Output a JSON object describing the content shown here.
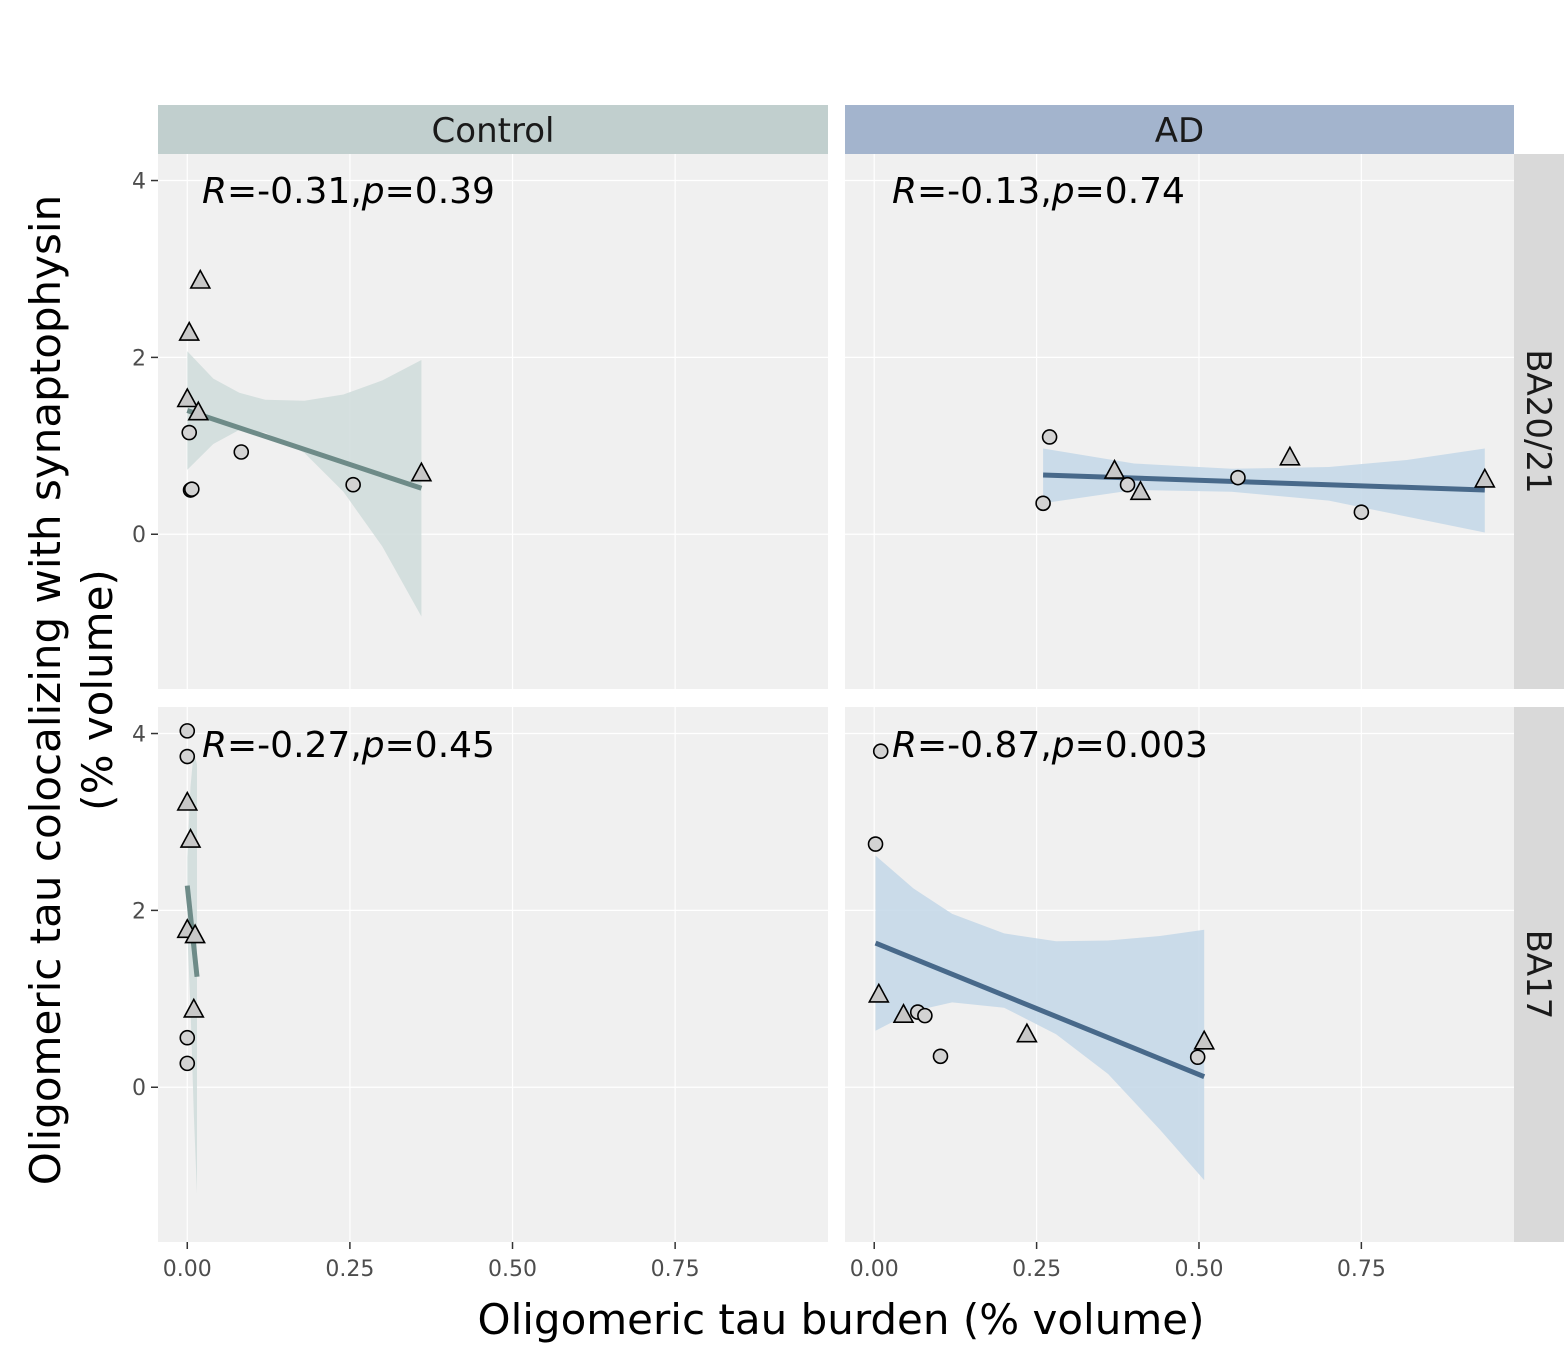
{
  "chart_data": {
    "type": "scatter",
    "xlabel": "Oligomeric tau burden (% volume)",
    "ylabel": "Oligomeric tau colocalizing with synaptophysin\n(% volume)",
    "x_ticks": [
      "0.00",
      "0.25",
      "0.50",
      "0.75"
    ],
    "y_ticks": [
      "0",
      "2",
      "4"
    ],
    "xlim": [
      -0.045,
      0.985
    ],
    "ylim": [
      -1.75,
      4.3
    ],
    "grid": true,
    "legend": "none",
    "columns": [
      {
        "label": "Control",
        "strip_color": "#c1cfce",
        "line_color": "#6e8b88",
        "band_color": "#cfdcda"
      },
      {
        "label": "AD",
        "strip_color": "#a3b4cd",
        "line_color": "#48698a",
        "band_color": "#c3d7e8"
      }
    ],
    "rows": [
      {
        "label": "BA20/21"
      },
      {
        "label": "BA17"
      }
    ],
    "panels": [
      {
        "col": 0,
        "row": 0,
        "annotation": {
          "r": "-0.31",
          "p": "0.39"
        },
        "fit": {
          "x": [
            0.0,
            0.36
          ],
          "y": [
            1.4,
            0.52
          ]
        },
        "band": {
          "x": [
            0.0,
            0.04,
            0.08,
            0.12,
            0.18,
            0.24,
            0.3,
            0.36
          ],
          "upper": [
            2.07,
            1.76,
            1.6,
            1.52,
            1.51,
            1.58,
            1.74,
            1.97
          ],
          "lower": [
            0.73,
            1.02,
            1.18,
            1.15,
            0.92,
            0.48,
            -0.14,
            -0.93
          ]
        },
        "points": [
          {
            "x": 0.02,
            "y": 2.87,
            "shape": "triangle"
          },
          {
            "x": 0.003,
            "y": 2.28,
            "shape": "triangle"
          },
          {
            "x": 0.0,
            "y": 1.53,
            "shape": "triangle"
          },
          {
            "x": 0.017,
            "y": 1.38,
            "shape": "triangle"
          },
          {
            "x": 0.003,
            "y": 1.15,
            "shape": "circle"
          },
          {
            "x": 0.083,
            "y": 0.93,
            "shape": "circle"
          },
          {
            "x": 0.255,
            "y": 0.56,
            "shape": "circle"
          },
          {
            "x": 0.36,
            "y": 0.69,
            "shape": "triangle"
          },
          {
            "x": 0.005,
            "y": 0.5,
            "shape": "circle"
          },
          {
            "x": 0.007,
            "y": 0.51,
            "shape": "circle"
          }
        ]
      },
      {
        "col": 1,
        "row": 0,
        "annotation": {
          "r": "-0.13",
          "p": "0.74"
        },
        "fit": {
          "x": [
            0.26,
            0.94
          ],
          "y": [
            0.67,
            0.5
          ]
        },
        "band": {
          "x": [
            0.26,
            0.4,
            0.55,
            0.7,
            0.82,
            0.94
          ],
          "upper": [
            0.97,
            0.8,
            0.74,
            0.76,
            0.84,
            0.97
          ],
          "lower": [
            0.35,
            0.5,
            0.48,
            0.38,
            0.2,
            0.02
          ]
        },
        "points": [
          {
            "x": 0.27,
            "y": 1.1,
            "shape": "circle"
          },
          {
            "x": 0.26,
            "y": 0.35,
            "shape": "circle"
          },
          {
            "x": 0.37,
            "y": 0.72,
            "shape": "triangle"
          },
          {
            "x": 0.39,
            "y": 0.56,
            "shape": "circle"
          },
          {
            "x": 0.41,
            "y": 0.48,
            "shape": "triangle"
          },
          {
            "x": 0.56,
            "y": 0.64,
            "shape": "circle"
          },
          {
            "x": 0.64,
            "y": 0.87,
            "shape": "triangle"
          },
          {
            "x": 0.75,
            "y": 0.25,
            "shape": "circle"
          },
          {
            "x": 0.94,
            "y": 0.62,
            "shape": "triangle"
          }
        ]
      },
      {
        "col": 0,
        "row": 1,
        "annotation": {
          "r": "-0.27",
          "p": "0.45"
        },
        "fit": {
          "x": [
            0.0,
            0.015
          ],
          "y": [
            2.28,
            1.25
          ]
        },
        "band": {
          "x": [
            0.0,
            0.005,
            0.01,
            0.015
          ],
          "upper": [
            2.6,
            3.4,
            3.8,
            3.65
          ],
          "lower": [
            1.75,
            0.9,
            -0.3,
            -1.2
          ]
        },
        "points": [
          {
            "x": 0.0,
            "y": 4.03,
            "shape": "circle"
          },
          {
            "x": 0.0,
            "y": 3.74,
            "shape": "circle"
          },
          {
            "x": 0.0,
            "y": 3.22,
            "shape": "triangle"
          },
          {
            "x": 0.005,
            "y": 2.8,
            "shape": "triangle"
          },
          {
            "x": 0.0,
            "y": 1.78,
            "shape": "triangle"
          },
          {
            "x": 0.012,
            "y": 1.72,
            "shape": "triangle"
          },
          {
            "x": 0.01,
            "y": 0.88,
            "shape": "triangle"
          },
          {
            "x": 0.0,
            "y": 0.56,
            "shape": "circle"
          },
          {
            "x": 0.0,
            "y": 0.27,
            "shape": "circle"
          }
        ]
      },
      {
        "col": 1,
        "row": 1,
        "annotation": {
          "r": "-0.87",
          "p": "0.003"
        },
        "fit": {
          "x": [
            0.002,
            0.508
          ],
          "y": [
            1.63,
            0.12
          ]
        },
        "band": {
          "x": [
            0.002,
            0.06,
            0.12,
            0.2,
            0.28,
            0.36,
            0.44,
            0.508
          ],
          "upper": [
            2.62,
            2.25,
            1.96,
            1.74,
            1.65,
            1.66,
            1.71,
            1.78
          ],
          "lower": [
            0.64,
            0.86,
            0.96,
            0.9,
            0.6,
            0.15,
            -0.48,
            -1.05
          ]
        },
        "points": [
          {
            "x": 0.01,
            "y": 3.8,
            "shape": "circle"
          },
          {
            "x": 0.002,
            "y": 2.75,
            "shape": "circle"
          },
          {
            "x": 0.007,
            "y": 1.05,
            "shape": "triangle"
          },
          {
            "x": 0.045,
            "y": 0.82,
            "shape": "triangle"
          },
          {
            "x": 0.067,
            "y": 0.85,
            "shape": "circle"
          },
          {
            "x": 0.078,
            "y": 0.81,
            "shape": "circle"
          },
          {
            "x": 0.102,
            "y": 0.35,
            "shape": "circle"
          },
          {
            "x": 0.235,
            "y": 0.6,
            "shape": "triangle"
          },
          {
            "x": 0.498,
            "y": 0.34,
            "shape": "circle"
          },
          {
            "x": 0.508,
            "y": 0.52,
            "shape": "triangle"
          }
        ]
      }
    ]
  }
}
